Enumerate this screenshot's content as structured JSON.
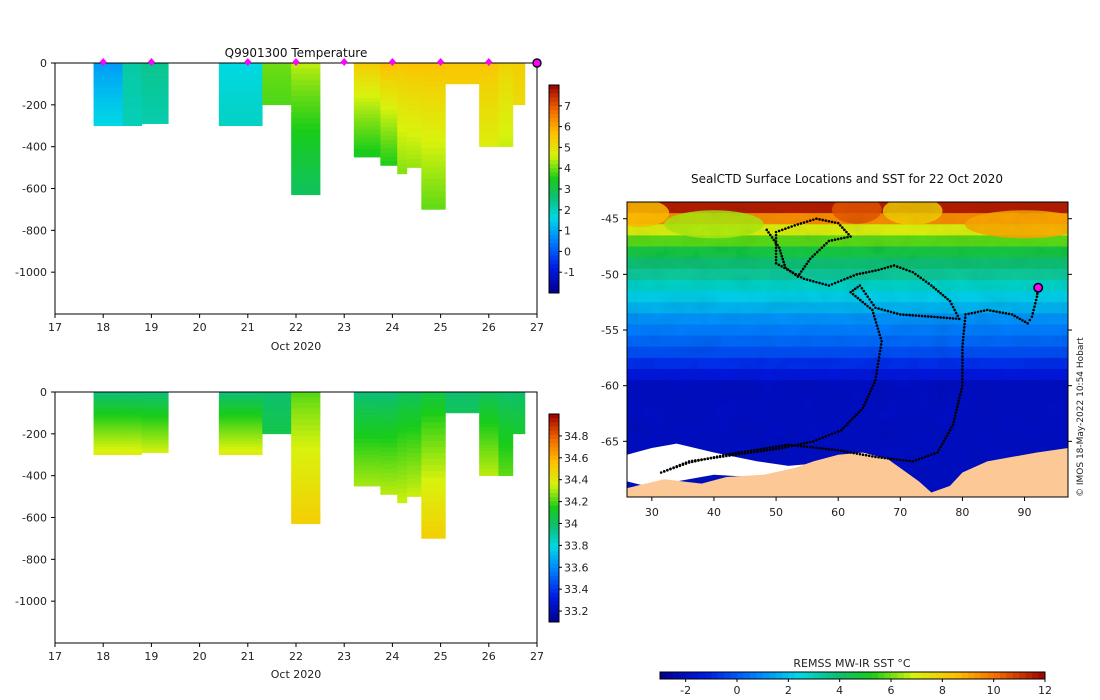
{
  "credit": "© IMOS 18-May-2022 10:54 Hobart",
  "chart_data": [
    {
      "id": "temperature",
      "type": "heatmap",
      "title": "Q9901300  Temperature",
      "xlabel": "Oct 2020",
      "ylabel": "",
      "xlim": [
        17,
        27
      ],
      "ylim": [
        -1200,
        0
      ],
      "xticks": [
        17,
        18,
        19,
        20,
        21,
        22,
        23,
        24,
        25,
        26,
        27
      ],
      "yticks": [
        0,
        -200,
        -400,
        -600,
        -800,
        -1000
      ],
      "colorbar": {
        "min": -2,
        "max": 8,
        "ticks": [
          -1,
          0,
          1,
          2,
          3,
          4,
          5,
          6,
          7
        ]
      },
      "markers_x": [
        18,
        19,
        21,
        22,
        23,
        24,
        25,
        26
      ],
      "profiles": [
        {
          "x0": 17.8,
          "x1": 18.4,
          "depth": 300,
          "surface": 0.8,
          "bottom": 1.6
        },
        {
          "x0": 18.4,
          "x1": 18.8,
          "depth": 300,
          "surface": 2.2,
          "bottom": 2.0
        },
        {
          "x0": 18.8,
          "x1": 19.35,
          "depth": 290,
          "surface": 2.4,
          "bottom": 2.1
        },
        {
          "x0": 20.4,
          "x1": 21.3,
          "depth": 300,
          "surface": 1.6,
          "bottom": 1.9
        },
        {
          "x0": 21.3,
          "x1": 21.9,
          "depth": 200,
          "surface": 4.0,
          "bottom": 3.8
        },
        {
          "x0": 21.9,
          "x1": 22.5,
          "depth": 630,
          "surface": 4.5,
          "bottom": 2.8
        },
        {
          "x0": 23.2,
          "x1": 23.75,
          "depth": 450,
          "surface": 5.5,
          "bottom": 3.4
        },
        {
          "x0": 23.75,
          "x1": 24.1,
          "depth": 490,
          "surface": 5.8,
          "bottom": 3.5
        },
        {
          "x0": 24.1,
          "x1": 24.3,
          "depth": 530,
          "surface": 5.6,
          "bottom": 4.1
        },
        {
          "x0": 24.3,
          "x1": 24.6,
          "depth": 500,
          "surface": 5.7,
          "bottom": 4.2
        },
        {
          "x0": 24.6,
          "x1": 25.1,
          "depth": 700,
          "surface": 5.7,
          "bottom": 3.9
        },
        {
          "x0": 25.1,
          "x1": 25.8,
          "depth": 100,
          "surface": 5.6,
          "bottom": 5.4
        },
        {
          "x0": 25.8,
          "x1": 26.2,
          "depth": 400,
          "surface": 5.6,
          "bottom": 4.7
        },
        {
          "x0": 26.2,
          "x1": 26.5,
          "depth": 400,
          "surface": 5.3,
          "bottom": 4.5
        },
        {
          "x0": 26.5,
          "x1": 26.75,
          "depth": 200,
          "surface": 5.4,
          "bottom": 5.1
        }
      ]
    },
    {
      "id": "salinity",
      "type": "heatmap",
      "title": "",
      "xlabel": "Oct 2020",
      "ylabel": "",
      "xlim": [
        17,
        27
      ],
      "ylim": [
        -1200,
        0
      ],
      "xticks": [
        17,
        18,
        19,
        20,
        21,
        22,
        23,
        24,
        25,
        26,
        27
      ],
      "yticks": [
        0,
        -200,
        -400,
        -600,
        -800,
        -1000
      ],
      "colorbar": {
        "min": 33.1,
        "max": 35.0,
        "ticks": [
          33.2,
          33.4,
          33.6,
          33.8,
          34,
          34.2,
          34.4,
          34.6,
          34.8
        ]
      },
      "profiles": [
        {
          "x0": 17.8,
          "x1": 18.4,
          "depth": 300,
          "surface": 33.95,
          "bottom": 34.38
        },
        {
          "x0": 18.4,
          "x1": 18.8,
          "depth": 300,
          "surface": 33.95,
          "bottom": 34.38
        },
        {
          "x0": 18.8,
          "x1": 19.35,
          "depth": 290,
          "surface": 33.95,
          "bottom": 34.35
        },
        {
          "x0": 20.4,
          "x1": 21.3,
          "depth": 300,
          "surface": 33.95,
          "bottom": 34.38
        },
        {
          "x0": 21.3,
          "x1": 21.9,
          "depth": 200,
          "surface": 33.98,
          "bottom": 34.05
        },
        {
          "x0": 21.9,
          "x1": 22.5,
          "depth": 630,
          "surface": 34.2,
          "bottom": 34.5
        },
        {
          "x0": 23.2,
          "x1": 23.75,
          "depth": 450,
          "surface": 33.95,
          "bottom": 34.3
        },
        {
          "x0": 23.75,
          "x1": 24.1,
          "depth": 490,
          "surface": 33.95,
          "bottom": 34.32
        },
        {
          "x0": 24.1,
          "x1": 24.3,
          "depth": 530,
          "surface": 34.0,
          "bottom": 34.34
        },
        {
          "x0": 24.3,
          "x1": 24.6,
          "depth": 500,
          "surface": 34.0,
          "bottom": 34.34
        },
        {
          "x0": 24.6,
          "x1": 25.1,
          "depth": 700,
          "surface": 34.05,
          "bottom": 34.5
        },
        {
          "x0": 25.1,
          "x1": 25.8,
          "depth": 100,
          "surface": 33.98,
          "bottom": 34.02
        },
        {
          "x0": 25.8,
          "x1": 26.2,
          "depth": 400,
          "surface": 34.0,
          "bottom": 34.32
        },
        {
          "x0": 26.2,
          "x1": 26.5,
          "depth": 400,
          "surface": 33.98,
          "bottom": 34.22
        },
        {
          "x0": 26.5,
          "x1": 26.75,
          "depth": 200,
          "surface": 33.98,
          "bottom": 34.1
        }
      ]
    },
    {
      "id": "sst-map",
      "type": "heatmap",
      "title": "SealCTD Surface Locations and SST for 22 Oct 2020",
      "xlabel": "",
      "ylabel": "",
      "xlim": [
        26,
        97
      ],
      "ylim": [
        -70,
        -43.5
      ],
      "xticks": [
        30,
        40,
        50,
        60,
        70,
        80,
        90
      ],
      "yticks": [
        -45,
        -50,
        -55,
        -60,
        -65
      ],
      "colorbar": {
        "label": "REMSS MW-IR SST °C",
        "min": -3,
        "max": 12,
        "ticks": [
          -2,
          0,
          2,
          4,
          6,
          8,
          10,
          12
        ]
      },
      "colors": {
        "land": "#fbc896",
        "ice": "#ffffff",
        "track": "#000000",
        "current_position": "#ff00ff"
      },
      "current_position": {
        "lon": 92.2,
        "lat": -51.2
      },
      "track": [
        {
          "lon": 48.5,
          "lat": -46.0
        },
        {
          "lon": 50.5,
          "lat": -47.6
        },
        {
          "lon": 51.5,
          "lat": -49.4
        },
        {
          "lon": 53.5,
          "lat": -50.2
        },
        {
          "lon": 55.5,
          "lat": -48.6
        },
        {
          "lon": 58.5,
          "lat": -47.0
        },
        {
          "lon": 62.0,
          "lat": -46.6
        },
        {
          "lon": 60.0,
          "lat": -45.4
        },
        {
          "lon": 56.5,
          "lat": -45.0
        },
        {
          "lon": 53.0,
          "lat": -45.6
        },
        {
          "lon": 50.0,
          "lat": -46.2
        },
        {
          "lon": 50.0,
          "lat": -49.0
        },
        {
          "lon": 54.5,
          "lat": -50.4
        },
        {
          "lon": 58.5,
          "lat": -51.0
        },
        {
          "lon": 63.0,
          "lat": -50.0
        },
        {
          "lon": 66.5,
          "lat": -49.6
        },
        {
          "lon": 69.0,
          "lat": -49.2
        },
        {
          "lon": 72.0,
          "lat": -49.8
        },
        {
          "lon": 75.0,
          "lat": -51.0
        },
        {
          "lon": 78.0,
          "lat": -52.4
        },
        {
          "lon": 79.5,
          "lat": -54.0
        },
        {
          "lon": 75.0,
          "lat": -53.8
        },
        {
          "lon": 70.0,
          "lat": -53.6
        },
        {
          "lon": 66.0,
          "lat": -53.0
        },
        {
          "lon": 63.5,
          "lat": -51.0
        },
        {
          "lon": 62.0,
          "lat": -51.6
        },
        {
          "lon": 65.5,
          "lat": -53.2
        },
        {
          "lon": 67.0,
          "lat": -56.0
        },
        {
          "lon": 66.0,
          "lat": -59.5
        },
        {
          "lon": 64.0,
          "lat": -62.0
        },
        {
          "lon": 60.5,
          "lat": -64.0
        },
        {
          "lon": 56.0,
          "lat": -65.0
        },
        {
          "lon": 51.0,
          "lat": -65.6
        },
        {
          "lon": 46.0,
          "lat": -66.0
        },
        {
          "lon": 41.0,
          "lat": -66.4
        },
        {
          "lon": 36.0,
          "lat": -66.8
        },
        {
          "lon": 31.5,
          "lat": -67.8
        },
        {
          "lon": 36.0,
          "lat": -66.9
        },
        {
          "lon": 42.0,
          "lat": -66.2
        },
        {
          "lon": 52.0,
          "lat": -65.3
        },
        {
          "lon": 60.0,
          "lat": -65.8
        },
        {
          "lon": 66.0,
          "lat": -66.4
        },
        {
          "lon": 72.0,
          "lat": -66.8
        },
        {
          "lon": 76.0,
          "lat": -66.0
        },
        {
          "lon": 78.5,
          "lat": -63.5
        },
        {
          "lon": 80.0,
          "lat": -60.0
        },
        {
          "lon": 80.0,
          "lat": -56.5
        },
        {
          "lon": 80.5,
          "lat": -53.6
        },
        {
          "lon": 84.0,
          "lat": -53.2
        },
        {
          "lon": 88.0,
          "lat": -53.6
        },
        {
          "lon": 90.5,
          "lat": -54.4
        },
        {
          "lon": 91.2,
          "lat": -53.8
        },
        {
          "lon": 92.0,
          "lat": -52.0
        },
        {
          "lon": 92.2,
          "lat": -51.2
        }
      ]
    }
  ]
}
